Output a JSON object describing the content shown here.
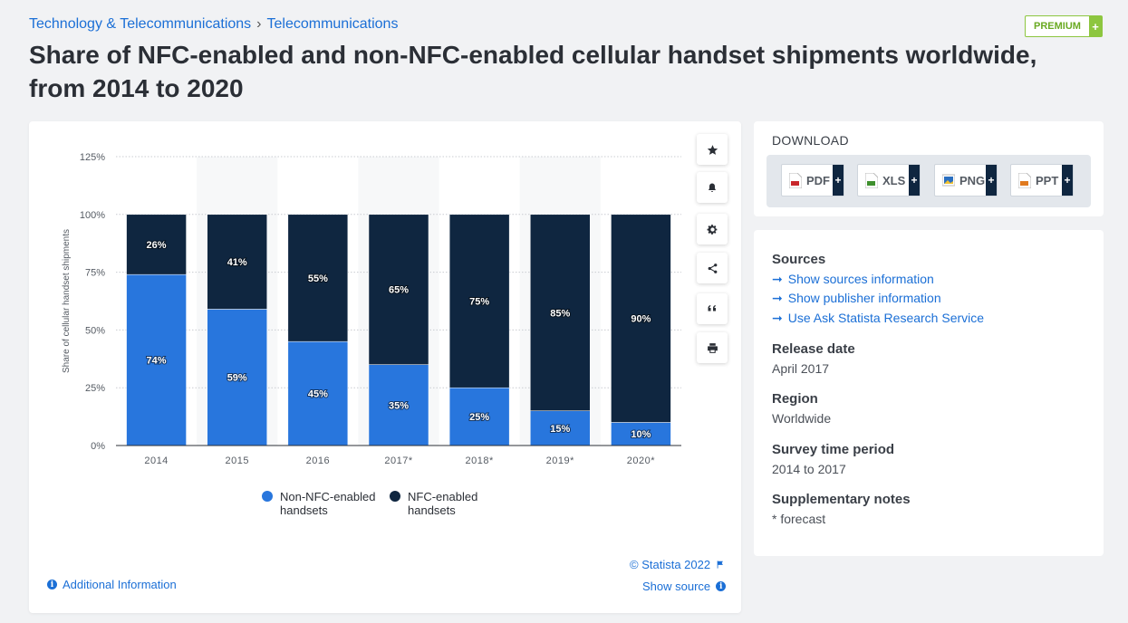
{
  "breadcrumb": {
    "items": [
      "Technology & Telecommunications",
      "Telecommunications"
    ],
    "separator": "›"
  },
  "premium": {
    "label": "PREMIUM",
    "plus": "+"
  },
  "page_title": "Share of NFC-enabled and non-NFC-enabled cellular handset shipments worldwide, from 2014 to 2020",
  "colors": {
    "non_nfc": "#2876dd",
    "nfc": "#0f2640",
    "accent": "#1b6fd6",
    "premium": "#8dc63f"
  },
  "chart_data": {
    "type": "bar",
    "stacked": true,
    "categories": [
      "2014",
      "2015",
      "2016",
      "2017*",
      "2018*",
      "2019*",
      "2020*"
    ],
    "series": [
      {
        "name": "Non-NFC-enabled handsets",
        "values": [
          74,
          59,
          45,
          35,
          25,
          15,
          10
        ],
        "labels": [
          "74%",
          "59%",
          "45%",
          "35%",
          "25%",
          "15%",
          "10%"
        ],
        "color": "#2876dd"
      },
      {
        "name": "NFC-enabled handsets",
        "values": [
          26,
          41,
          55,
          65,
          75,
          85,
          90
        ],
        "labels": [
          "26%",
          "41%",
          "55%",
          "65%",
          "75%",
          "85%",
          "90%"
        ],
        "color": "#0f2640"
      }
    ],
    "ylabel": "Share of cellular handset shipments",
    "xlabel": "",
    "ylim": [
      0,
      125
    ],
    "yticks": [
      0,
      25,
      50,
      75,
      100,
      125
    ],
    "ytick_labels": [
      "0%",
      "25%",
      "50%",
      "75%",
      "100%",
      "125%"
    ],
    "grid": true,
    "legend_position": "bottom"
  },
  "legend": {
    "non_nfc": [
      "Non-NFC-enabled",
      "handsets"
    ],
    "nfc": [
      "NFC-enabled",
      "handsets"
    ]
  },
  "tools": [
    "star-icon",
    "bell-icon",
    "gear-icon",
    "share-icon",
    "quote-icon",
    "print-icon"
  ],
  "footer": {
    "additional_info": "Additional Information",
    "copyright": "© Statista 2022",
    "show_source": "Show source"
  },
  "download": {
    "title": "DOWNLOAD",
    "buttons": [
      {
        "label": "PDF",
        "icon": "pdf-file-icon",
        "color": "#c8262a"
      },
      {
        "label": "XLS",
        "icon": "xls-file-icon",
        "color": "#3e8f2d"
      },
      {
        "label": "PNG",
        "icon": "png-file-icon",
        "color": "#2a6fc0"
      },
      {
        "label": "PPT",
        "icon": "ppt-file-icon",
        "color": "#e07a1f"
      }
    ],
    "plus": "+"
  },
  "info": {
    "sources_heading": "Sources",
    "links": [
      "Show sources information",
      "Show publisher information",
      "Use Ask Statista Research Service"
    ],
    "release_heading": "Release date",
    "release_value": "April 2017",
    "region_heading": "Region",
    "region_value": "Worldwide",
    "survey_heading": "Survey time period",
    "survey_value": "2014 to 2017",
    "notes_heading": "Supplementary notes",
    "notes_value": "* forecast"
  }
}
